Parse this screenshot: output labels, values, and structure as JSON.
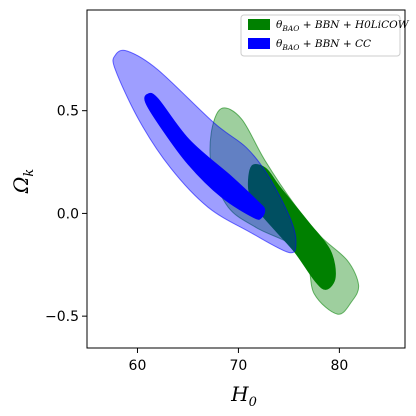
{
  "chart_data": {
    "type": "contour",
    "xlabel_main": "H",
    "xlabel_sub": "0",
    "ylabel_main": "Ω",
    "ylabel_sub": "k",
    "xlim": [
      55,
      86.5
    ],
    "ylim": [
      -0.655,
      0.99
    ],
    "x_ticks": [
      "60",
      "70",
      "80"
    ],
    "x_tick_values": [
      60,
      70,
      80
    ],
    "y_ticks": [
      "0.5",
      "0.0",
      "−0.5"
    ],
    "y_tick_values": [
      0.5,
      0.0,
      -0.5
    ],
    "legend_position": "top-right",
    "series": [
      {
        "name": "θ₂ₐₒ + BBN + H0LiCOW",
        "legend_text": "θBAO + BBN + H0LiCOW",
        "color": "#008000",
        "outer_color": "#96c896",
        "contour_95": [
          [
            68.3,
            0.51
          ],
          [
            70.3,
            0.46
          ],
          [
            72.6,
            0.26
          ],
          [
            75.6,
            0.04
          ],
          [
            78.1,
            -0.11
          ],
          [
            80.8,
            -0.23
          ],
          [
            81.9,
            -0.35
          ],
          [
            81.2,
            -0.43
          ],
          [
            79.8,
            -0.49
          ],
          [
            77.5,
            -0.39
          ],
          [
            76.4,
            -0.19
          ],
          [
            71.8,
            -0.07
          ],
          [
            69.0,
            0.03
          ],
          [
            67.4,
            0.21
          ],
          [
            67.3,
            0.39
          ]
        ],
        "contour_68": [
          [
            71.3,
            0.23
          ],
          [
            72.7,
            0.22
          ],
          [
            74.1,
            0.13
          ],
          [
            76.9,
            -0.04
          ],
          [
            79.1,
            -0.18
          ],
          [
            79.6,
            -0.31
          ],
          [
            78.7,
            -0.37
          ],
          [
            77.6,
            -0.33
          ],
          [
            75.6,
            -0.19
          ],
          [
            73.6,
            -0.08
          ],
          [
            71.7,
            0.03
          ],
          [
            71.0,
            0.12
          ]
        ]
      },
      {
        "name": "θBAO + BBN + CC",
        "legend_text": "θBAO + BBN + CC",
        "color": "#0000ff",
        "outer_color": "#a0a0ff",
        "contour_95": [
          [
            57.8,
            0.77
          ],
          [
            59.0,
            0.79
          ],
          [
            62.0,
            0.7
          ],
          [
            67.6,
            0.44
          ],
          [
            70.8,
            0.32
          ],
          [
            73.0,
            0.18
          ],
          [
            75.1,
            -0.02
          ],
          [
            75.7,
            -0.14
          ],
          [
            75.0,
            -0.19
          ],
          [
            71.1,
            -0.09
          ],
          [
            67.0,
            0.03
          ],
          [
            63.3,
            0.22
          ],
          [
            60.2,
            0.45
          ],
          [
            57.8,
            0.7
          ]
        ],
        "contour_68": [
          [
            61.0,
            0.58
          ],
          [
            62.0,
            0.56
          ],
          [
            65.1,
            0.36
          ],
          [
            69.3,
            0.18
          ],
          [
            71.9,
            0.06
          ],
          [
            72.6,
            0.02
          ],
          [
            72.3,
            -0.02
          ],
          [
            71.5,
            -0.02
          ],
          [
            68.3,
            0.08
          ],
          [
            65.0,
            0.24
          ],
          [
            62.3,
            0.42
          ],
          [
            60.8,
            0.54
          ]
        ]
      }
    ]
  },
  "legend": {
    "items": [
      {
        "main": "θ",
        "sub": "BAO",
        "rest": " + BBN + H0LiCOW",
        "color": "#008000"
      },
      {
        "main": "θ",
        "sub": "BAO",
        "rest": " + BBN + CC",
        "color": "#0000ff"
      }
    ]
  }
}
